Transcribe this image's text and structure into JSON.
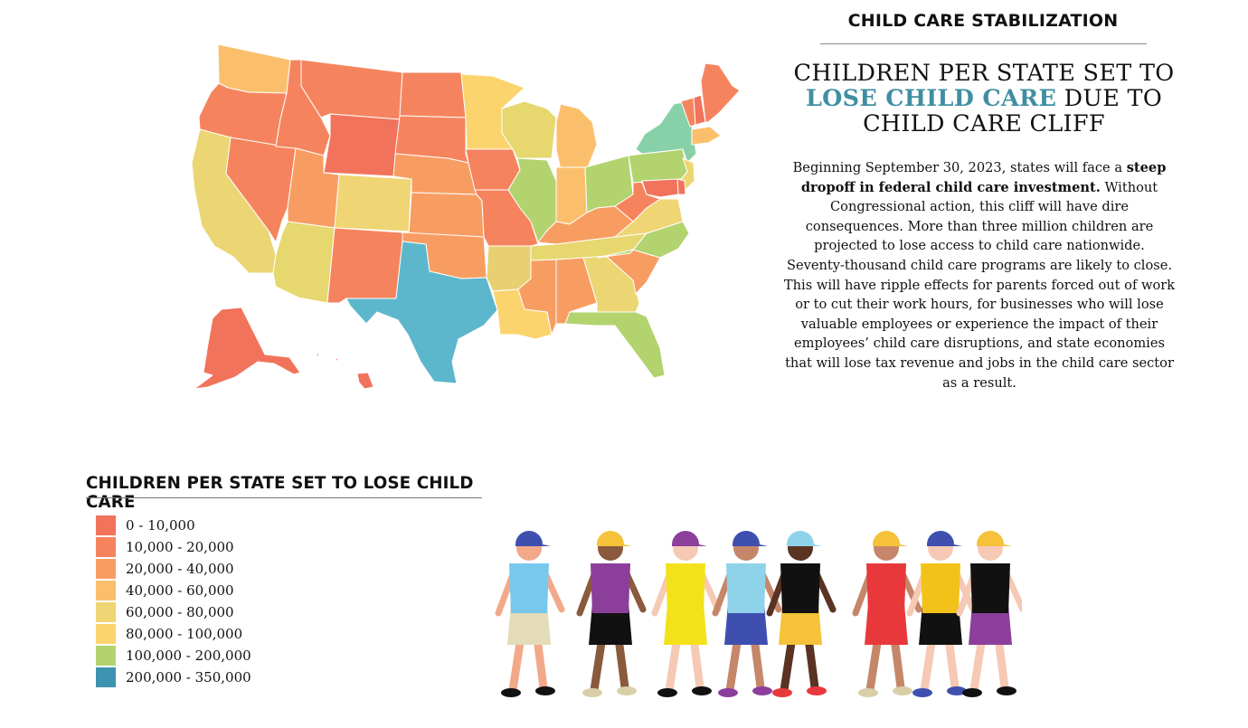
{
  "header": {
    "kicker": "CHILD CARE STABILIZATION",
    "headline_pre": "CHILDREN PER STATE SET TO",
    "headline_highlight": "LOSE CHILD CARE",
    "headline_post": "DUE TO CHILD CARE CLIFF",
    "highlight_color": "#3f8fa2"
  },
  "body": {
    "p1": "Beginning September 30, 2023, states will face a",
    "p1_bold": "steep dropoff in federal child care investment.",
    "p2": "Without Congressional action, this cliff will have dire consequences. More than three million children are projected to lose access to child care nationwide. Seventy-thousand child care programs are likely to close. This will have ripple effects for parents forced out of work or to cut their work hours, for businesses who will lose valuable employees or experience the impact of their employees’ child care disruptions, and state economies that will lose tax revenue and jobs in the child care sector as a result."
  },
  "legend": {
    "title": "CHILDREN PER STATE SET TO LOSE CHILD CARE",
    "items": [
      {
        "label": "0 - 10,000",
        "color": "#f2735b"
      },
      {
        "label": "10,000 - 20,000",
        "color": "#f5845e"
      },
      {
        "label": "20,000 - 40,000",
        "color": "#f89d62"
      },
      {
        "label": "40,000 - 60,000",
        "color": "#fbbf6c"
      },
      {
        "label": "60,000 - 80,000",
        "color": "#f0d574"
      },
      {
        "label": "80,000 - 100,000",
        "color": "#fbd46e"
      },
      {
        "label": "100,000 - 200,000",
        "color": "#b2d36e"
      },
      {
        "label": "200,000 - 350,000",
        "color": "#3e93b0"
      }
    ]
  },
  "map": {
    "state_colors": {
      "WA": "#fbbf6c",
      "OR": "#f5845e",
      "CA": "#ecd673",
      "NV": "#f5845e",
      "ID": "#f5845e",
      "MT": "#f5845e",
      "WY": "#f2735b",
      "UT": "#f89d62",
      "AZ": "#e6d76f",
      "NM": "#f5845e",
      "CO": "#f0d574",
      "ND": "#f5845e",
      "SD": "#f5845e",
      "NE": "#f89d62",
      "KS": "#f89d62",
      "OK": "#f89d62",
      "TX": "#5db7cc",
      "MN": "#fbd46e",
      "IA": "#f5845e",
      "MO": "#f5845e",
      "AR": "#e8d072",
      "LA": "#fbd46e",
      "WI": "#e6d76f",
      "IL": "#b2d36e",
      "MI": "#fbbf6c",
      "IN": "#fbbf6c",
      "OH": "#b2d36e",
      "KY": "#f89d62",
      "TN": "#e6d76f",
      "MS": "#f89d62",
      "AL": "#f89d62",
      "GA": "#ecd673",
      "FL": "#b2d36e",
      "SC": "#f89d62",
      "NC": "#b2d36e",
      "VA": "#f0d574",
      "WV": "#f5845e",
      "PA": "#b2d36e",
      "NY": "#88d1a8",
      "VT": "#f5845e",
      "NH": "#f2735b",
      "ME": "#f5845e",
      "MA": "#fbbf6c",
      "NJ": "#f0d574",
      "DE": "#f2735b",
      "MD": "#f2735b",
      "AK": "#f2735b",
      "HI": "#f2735b"
    }
  },
  "illustration": {
    "kids": [
      {
        "hat": "#3f4fb0",
        "skin": "#f2a98a",
        "shirt": "#78c7ec",
        "pants": "#e4dcb8",
        "shoes": "#111111"
      },
      {
        "hat": "#f5c23a",
        "skin": "#8a5a3c",
        "shirt": "#8b3f9b",
        "pants": "#111111",
        "shoes": "#d8cfa8"
      },
      {
        "hat": "#8b3f9b",
        "skin": "#f5c9b4",
        "shirt": "#f3e21a",
        "pants": "#f3e21a",
        "shoes": "#111111"
      },
      {
        "hat": "#3f4fb0",
        "skin": "#c6866a",
        "shirt": "#8fd3ea",
        "pants": "#3f4fb0",
        "shoes": "#8b3f9b"
      },
      {
        "hat": "#8fd3ea",
        "skin": "#5a3322",
        "shirt": "#111111",
        "pants": "#f5c23a",
        "shoes": "#e8383b"
      },
      {
        "hat": "#f5c23a",
        "skin": "#c6866a",
        "shirt": "#e8383b",
        "pants": "#e8383b",
        "shoes": "#d8cfa8"
      },
      {
        "hat": "#3f4fb0",
        "skin": "#f5c9b4",
        "shirt": "#f3c21a",
        "pants": "#111111",
        "shoes": "#3f4fb0"
      },
      {
        "hat": "#f5c23a",
        "skin": "#f5c9b4",
        "shirt": "#111111",
        "pants": "#8b3f9b",
        "shoes": "#111111"
      }
    ]
  }
}
